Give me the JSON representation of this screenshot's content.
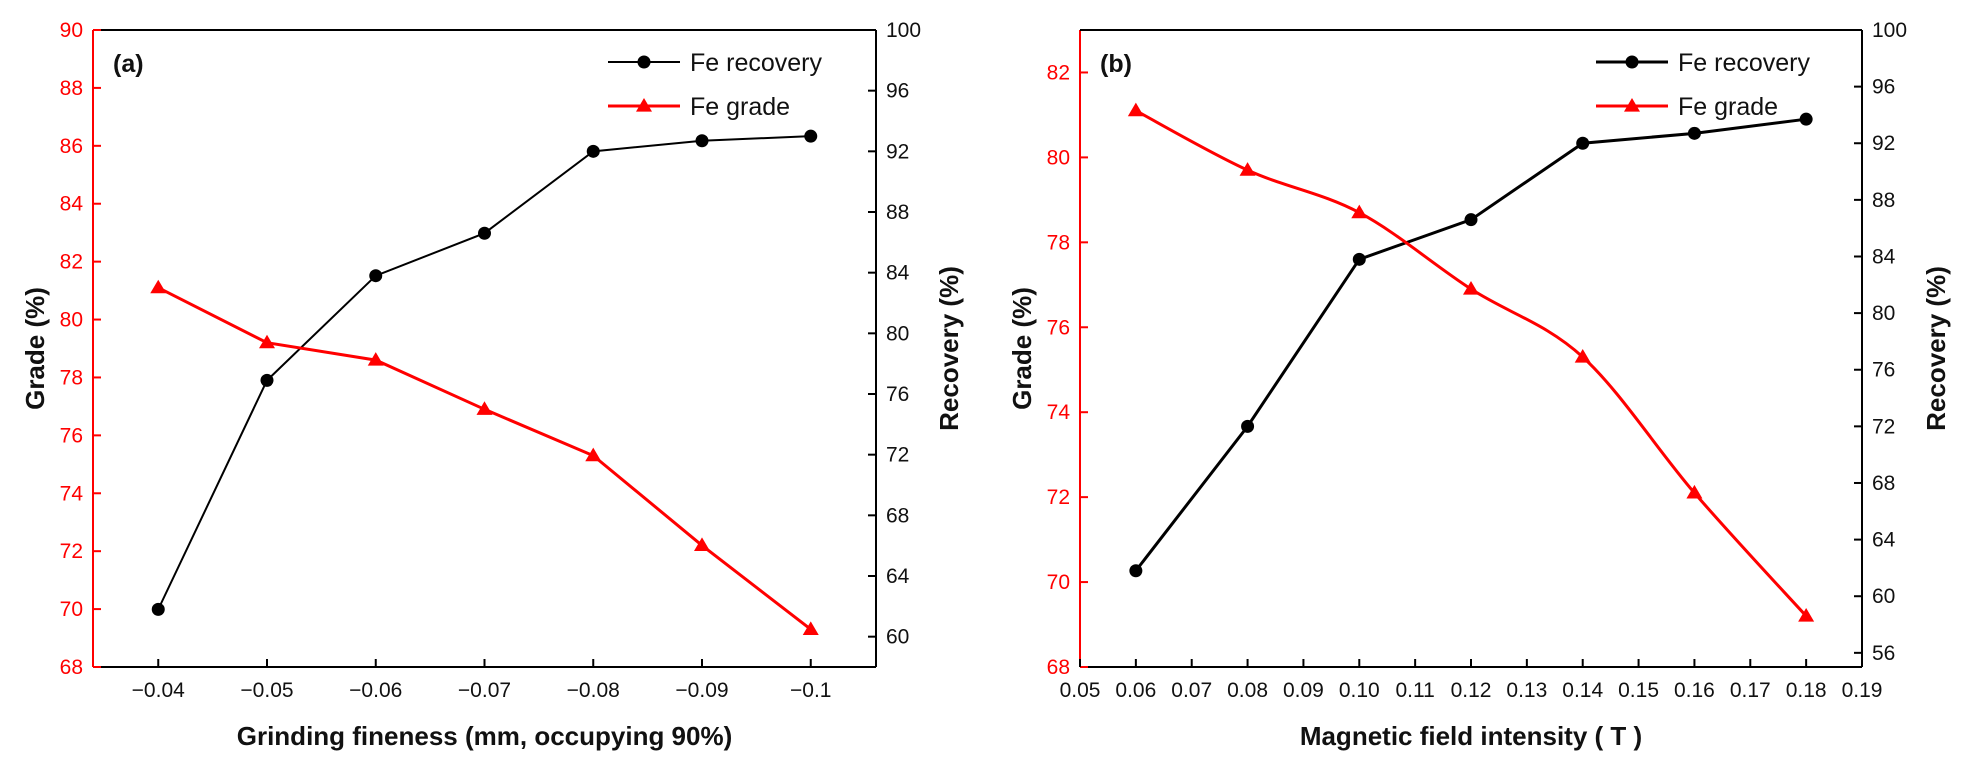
{
  "colors": {
    "recovery": "#000000",
    "grade": "#ff0000",
    "left_axis": "#ff0000",
    "right_axis": "#000000"
  },
  "chart_data": [
    {
      "type": "line",
      "panel_label": "(a)",
      "xlabel": "Grinding fineness  (mm, occupying 90%)",
      "ylabel": "Grade (%)",
      "y2label": "Recovery (%)",
      "categories": [
        "-0.04",
        "-0.05",
        "-0.06",
        "-0.07",
        "-0.08",
        "-0.09",
        "-0.1"
      ],
      "x_tick_labels": [
        "−0.04",
        "−0.05",
        "−0.06",
        "−0.07",
        "−0.08",
        "−0.09",
        "−0.1"
      ],
      "ylim": [
        68,
        90
      ],
      "y_ticks": [
        "68",
        "70",
        "72",
        "74",
        "76",
        "78",
        "80",
        "82",
        "84",
        "86",
        "88",
        "90"
      ],
      "y2lim": [
        58,
        100
      ],
      "y2_ticks": [
        "60",
        "64",
        "68",
        "72",
        "76",
        "80",
        "84",
        "88",
        "92",
        "96",
        "100"
      ],
      "legend_position": "top-right",
      "series": [
        {
          "name": "Fe recovery",
          "axis": "right",
          "marker": "circle",
          "color": "#000000",
          "smooth": false,
          "values": [
            61.8,
            76.9,
            83.8,
            86.6,
            92.0,
            92.7,
            93.0
          ]
        },
        {
          "name": "Fe grade",
          "axis": "left",
          "marker": "triangle",
          "color": "#ff0000",
          "smooth": false,
          "values": [
            81.1,
            79.2,
            78.6,
            76.9,
            75.3,
            72.2,
            69.3
          ]
        }
      ]
    },
    {
      "type": "line",
      "panel_label": "(b)",
      "xlabel": "Magnetic field intensity ( T )",
      "ylabel": "Grade (%)",
      "y2label": "Recovery (%)",
      "x_values": [
        0.06,
        0.08,
        0.1,
        0.12,
        0.14,
        0.16,
        0.18
      ],
      "xlim": [
        0.05,
        0.19
      ],
      "x_tick_labels": [
        "0.05",
        "0.06",
        "0.07",
        "0.08",
        "0.09",
        "0.10",
        "0.11",
        "0.12",
        "0.13",
        "0.14",
        "0.15",
        "0.16",
        "0.17",
        "0.18",
        "0.19"
      ],
      "ylim": [
        68,
        83
      ],
      "y_ticks": [
        "68",
        "70",
        "72",
        "74",
        "76",
        "78",
        "80",
        "82"
      ],
      "y2lim": [
        55,
        100
      ],
      "y2_ticks": [
        "56",
        "60",
        "64",
        "68",
        "72",
        "76",
        "80",
        "84",
        "88",
        "92",
        "96",
        "100"
      ],
      "legend_position": "top-right",
      "series": [
        {
          "name": "Fe recovery",
          "axis": "right",
          "marker": "circle",
          "color": "#000000",
          "smooth": false,
          "values": [
            61.8,
            72.0,
            83.8,
            86.6,
            92.0,
            92.7,
            93.7
          ]
        },
        {
          "name": "Fe grade",
          "axis": "left",
          "marker": "triangle",
          "color": "#ff0000",
          "smooth": true,
          "values": [
            81.1,
            79.7,
            78.7,
            76.9,
            75.3,
            72.1,
            69.2
          ]
        }
      ]
    }
  ]
}
